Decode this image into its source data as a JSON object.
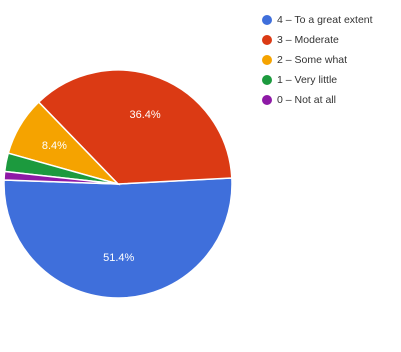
{
  "chart_data": {
    "type": "pie",
    "slices": [
      {
        "label": "4 – To a great extent",
        "value": 51.4,
        "color": "#3f6fdb",
        "data_label": "51.4%"
      },
      {
        "label": "3 – Moderate",
        "value": 36.4,
        "color": "#db3a14",
        "data_label": "36.4%"
      },
      {
        "label": "2 – Some what",
        "value": 8.4,
        "color": "#f5a300",
        "data_label": "8.4%"
      },
      {
        "label": "1 – Very little",
        "value": 2.6,
        "color": "#1c9a3e",
        "data_label": ""
      },
      {
        "label": "0 – Not at all",
        "value": 1.2,
        "color": "#8e1aa6",
        "data_label": ""
      }
    ],
    "legend_position": "right"
  }
}
